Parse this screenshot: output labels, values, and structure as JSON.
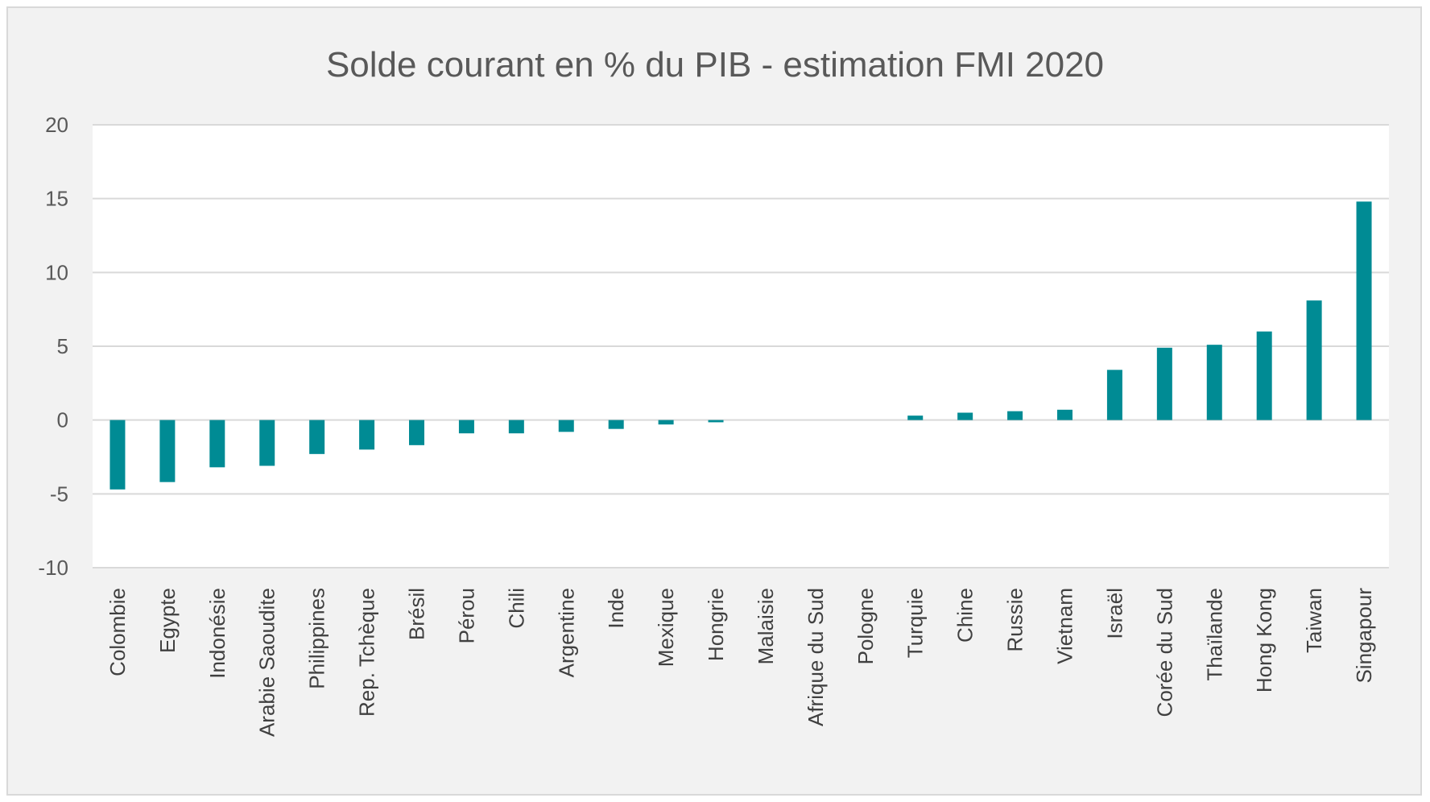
{
  "chart_data": {
    "type": "bar",
    "title": "Solde courant en % du PIB - estimation FMI 2020",
    "xlabel": "",
    "ylabel": "",
    "ylim": [
      -10,
      20
    ],
    "yticks": [
      20,
      15,
      10,
      5,
      0,
      -5,
      -10
    ],
    "grid": true,
    "legend": "none",
    "bar_color": "#008b94",
    "categories": [
      "Colombie",
      "Egypte",
      "Indonésie",
      "Arabie Saoudite",
      "Philippines",
      "Rep. Tchèque",
      "Brésil",
      "Pérou",
      "Chili",
      "Argentine",
      "Inde",
      "Mexique",
      "Hongrie",
      "Malaisie",
      "Afrique du Sud",
      "Pologne",
      "Turquie",
      "Chine",
      "Russie",
      "Vietnam",
      "Israël",
      "Corée du Sud",
      "Thaïlande",
      "Hong Kong",
      "Taiwan",
      "Singapour"
    ],
    "values": [
      -4.7,
      -4.2,
      -3.2,
      -3.1,
      -2.3,
      -2.0,
      -1.7,
      -0.9,
      -0.9,
      -0.8,
      -0.6,
      -0.3,
      -0.15,
      0.0,
      0.0,
      0.0,
      0.3,
      0.5,
      0.6,
      0.7,
      3.4,
      4.9,
      5.1,
      6.0,
      8.1,
      14.8
    ]
  }
}
